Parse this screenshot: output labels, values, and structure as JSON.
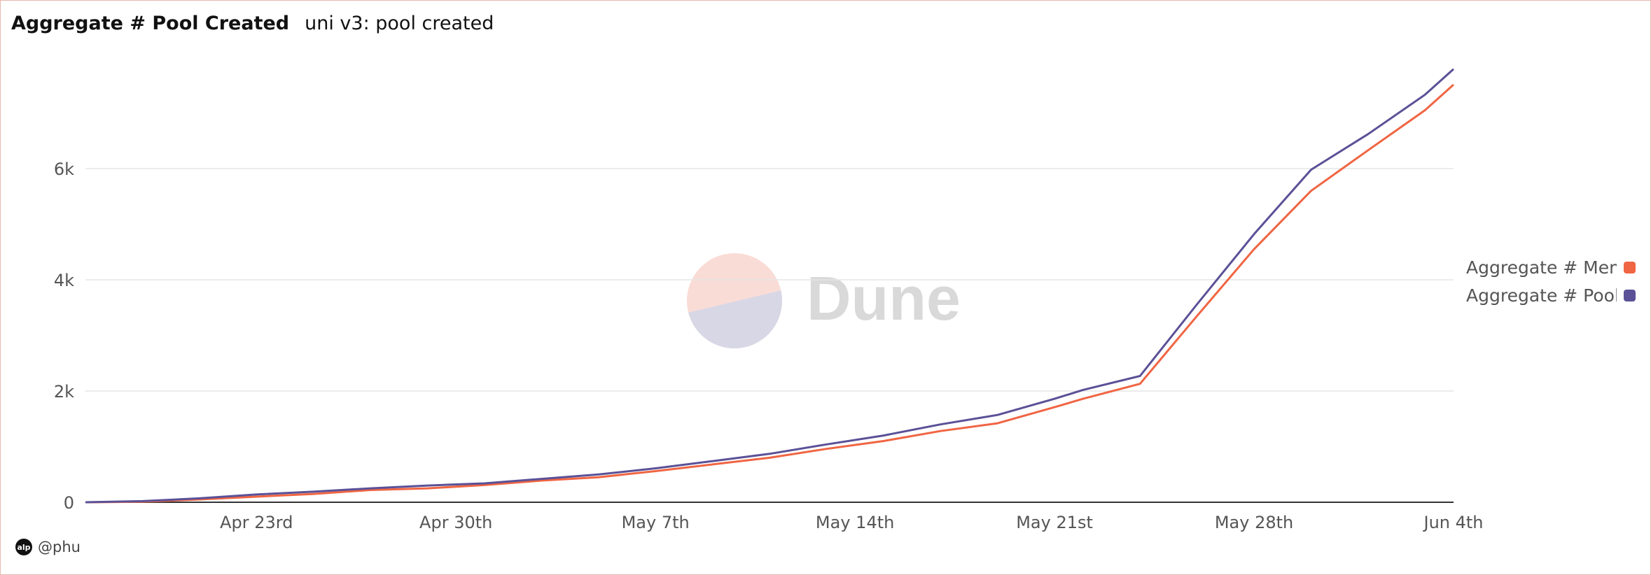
{
  "header": {
    "title": "Aggregate # Pool Created",
    "subtitle": "uni v3: pool created"
  },
  "footer": {
    "author": "@phu",
    "avatar_text": "alp"
  },
  "watermark": {
    "text": "Dune"
  },
  "colors": {
    "series_1": "#f06543",
    "series_2": "#5a5197",
    "grid": "#e6e6e6",
    "axis": "#333333"
  },
  "chart_data": {
    "type": "line",
    "x_ticks": [
      "Apr 23rd",
      "Apr 30th",
      "May 7th",
      "May 14th",
      "May 21st",
      "May 28th",
      "Jun 4th"
    ],
    "y_ticks": [
      "0",
      "2k",
      "4k",
      "6k"
    ],
    "ylim": [
      0,
      7800
    ],
    "xlim": [
      "2021-04-17",
      "2021-06-04"
    ],
    "grid": true,
    "legend_position": "right",
    "x": [
      "2021-04-17",
      "2021-04-19",
      "2021-04-21",
      "2021-04-23",
      "2021-04-25",
      "2021-04-27",
      "2021-04-29",
      "2021-05-01",
      "2021-05-03",
      "2021-05-05",
      "2021-05-07",
      "2021-05-09",
      "2021-05-11",
      "2021-05-13",
      "2021-05-15",
      "2021-05-17",
      "2021-05-19",
      "2021-05-21",
      "2021-05-22",
      "2021-05-24",
      "2021-05-26",
      "2021-05-28",
      "2021-05-30",
      "2021-06-01",
      "2021-06-03",
      "2021-06-04"
    ],
    "series": [
      {
        "name": "Aggregate # Memc",
        "color_key": "series_1",
        "values": [
          0,
          10,
          50,
          100,
          150,
          220,
          250,
          310,
          390,
          450,
          560,
          680,
          800,
          960,
          1100,
          1280,
          1420,
          1710,
          1860,
          2130,
          3350,
          4550,
          5600,
          6330,
          7050,
          7510
        ]
      },
      {
        "name": "Aggregate # Pool",
        "color_key": "series_2",
        "values": [
          0,
          20,
          70,
          140,
          190,
          250,
          300,
          340,
          420,
          500,
          610,
          740,
          870,
          1040,
          1200,
          1400,
          1570,
          1860,
          2020,
          2270,
          3560,
          4820,
          5980,
          6620,
          7330,
          7790
        ]
      }
    ]
  }
}
